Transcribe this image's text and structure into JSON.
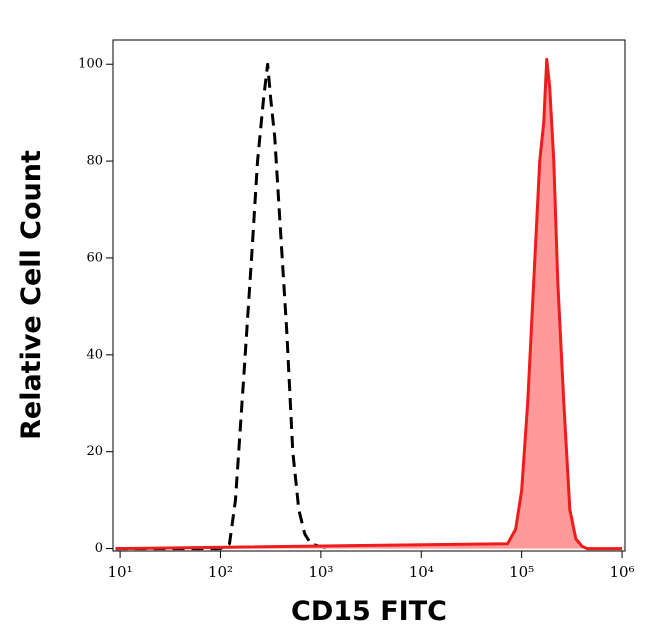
{
  "chart_data": {
    "type": "line",
    "xlabel": "CD15 FITC",
    "ylabel": "Relative Cell Count",
    "xscale": "log",
    "xlim": [
      8.5,
      1070000
    ],
    "ylim": [
      -0.5,
      105
    ],
    "xticks": [
      {
        "value": 10,
        "label": "10¹"
      },
      {
        "value": 100,
        "label": "10²"
      },
      {
        "value": 1000,
        "label": "10³"
      },
      {
        "value": 10000,
        "label": "10⁴"
      },
      {
        "value": 100000,
        "label": "10⁵"
      },
      {
        "value": 1000000,
        "label": "10⁶"
      }
    ],
    "yticks": [
      0,
      20,
      40,
      60,
      80,
      100
    ],
    "series": [
      {
        "color": "#000000",
        "dashed": true,
        "filled": false,
        "x": [
          9,
          100,
          123,
          141,
          170,
          204,
          234,
          269,
          295,
          316,
          347,
          398,
          457,
          525,
          603,
          692,
          794,
          955,
          1202
        ],
        "values": [
          0,
          0,
          1,
          10,
          35,
          60,
          80,
          93,
          100,
          93,
          85,
          65,
          45,
          20,
          8,
          3,
          1,
          0.5,
          0
        ]
      },
      {
        "color": "#ee1c1c",
        "fill_color": "#ff9a9a",
        "dashed": false,
        "filled": true,
        "x": [
          9,
          72400,
          87100,
          100000,
          114800,
          131800,
          151400,
          166000,
          177800,
          190500,
          208900,
          229100,
          263000,
          302000,
          346700,
          398100,
          446700,
          1000000
        ],
        "values": [
          0,
          1,
          4,
          12,
          30,
          55,
          80,
          88,
          101,
          95,
          80,
          55,
          30,
          8,
          2,
          0.5,
          0,
          0
        ]
      }
    ]
  }
}
